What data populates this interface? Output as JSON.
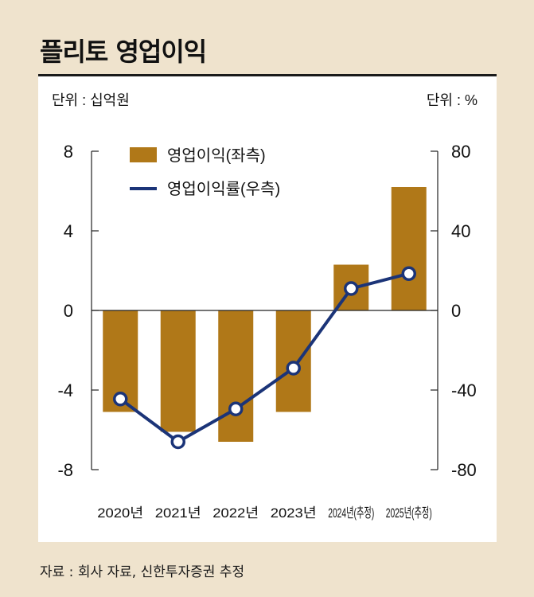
{
  "title": "플리토 영업이익",
  "source": "자료 : 회사 자료, 신한투자증권 추정",
  "colors": {
    "bar": "#b07818",
    "line": "#1b3478",
    "axis": "#222222"
  },
  "chart_data": {
    "type": "bar+line",
    "categories": [
      "2020년",
      "2021년",
      "2022년",
      "2023년",
      "2024년(추정)",
      "2025년(추정)"
    ],
    "left_unit": "단위 : 십억원",
    "right_unit": "단위 : %",
    "left_axis": {
      "range": [
        -8,
        8
      ],
      "ticks": [
        8,
        4,
        0,
        -4,
        -8
      ],
      "tick_labels": [
        "8",
        "4",
        "0",
        "-4",
        "-8"
      ]
    },
    "right_axis": {
      "range": [
        -80,
        80
      ],
      "ticks": [
        80,
        40,
        0,
        -40,
        -80
      ],
      "tick_labels": [
        "80",
        "40",
        "0",
        "-40",
        "-80"
      ]
    },
    "legend_position": "top-left",
    "series": [
      {
        "name": "영업이익(좌측)",
        "type": "bar",
        "axis": "left",
        "values": [
          -5.1,
          -6.1,
          -6.6,
          -5.1,
          2.3,
          6.2
        ]
      },
      {
        "name": "영업이익률(우측)",
        "type": "line",
        "axis": "right",
        "values": [
          -44.5,
          -66,
          -49.5,
          -29,
          11,
          18.5
        ]
      }
    ]
  }
}
